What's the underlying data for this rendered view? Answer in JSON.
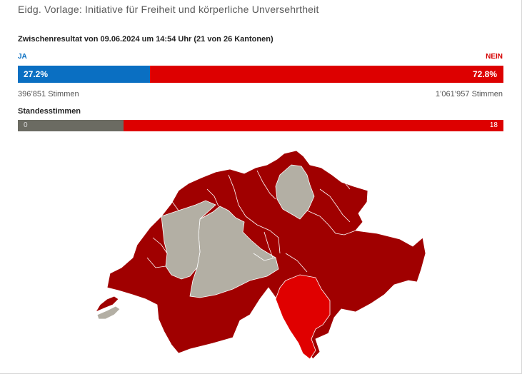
{
  "header": {
    "title": "Eidg. Vorlage: Initiative für Freiheit und körperliche Unversehrtheit",
    "interim_result": "Zwischenresultat von 09.06.2024 um 14:54 Uhr (21 von 26 Kantonen)"
  },
  "popular_vote": {
    "yes_label": "JA",
    "no_label": "NEIN",
    "yes_percent_label": "27.2%",
    "no_percent_label": "72.8%",
    "yes_percent": 27.2,
    "no_percent": 72.8,
    "yes_votes": "396’851 Stimmen",
    "no_votes": "1’061’957 Stimmen"
  },
  "cantonal_vote": {
    "label": "Standesstimmen",
    "yes_count": "0",
    "no_count": "18"
  },
  "map": {
    "colors": {
      "yes": "#d50000",
      "no_dark": "#a00000",
      "no_light": "#e00000",
      "pending": "#b3afa4",
      "border": "#ffffff"
    }
  }
}
